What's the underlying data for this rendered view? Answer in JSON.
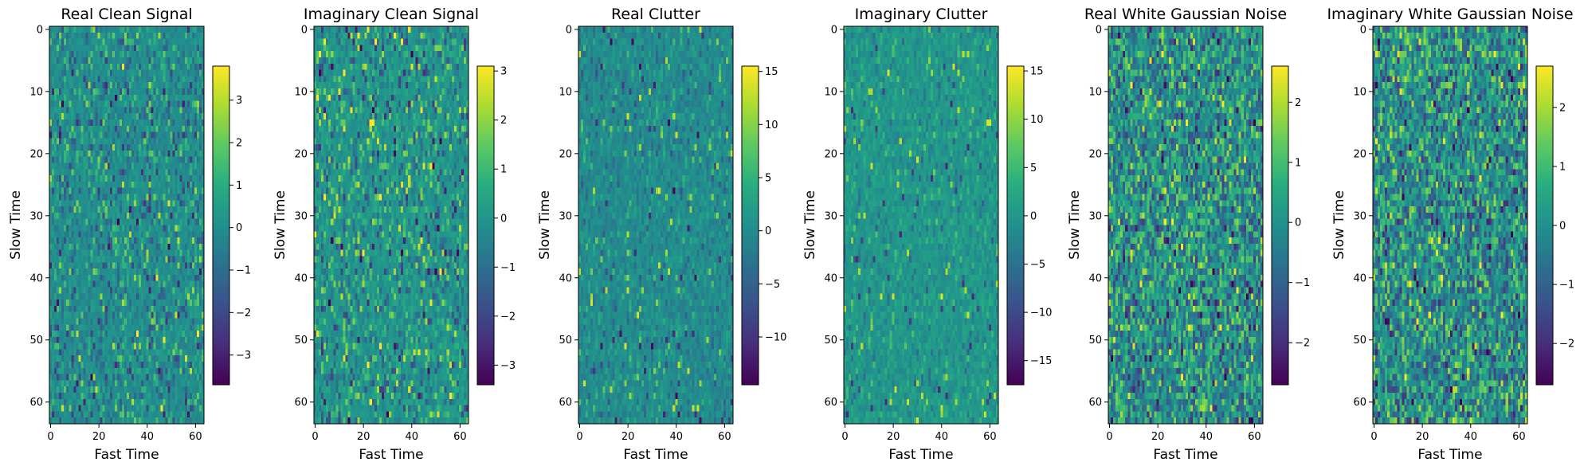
{
  "chart_data": [
    {
      "type": "heatmap",
      "title": "Real Clean Signal",
      "xlabel": "Fast Time",
      "ylabel": "Slow Time",
      "xlim": [
        -0.5,
        63.5
      ],
      "ylim": [
        63.5,
        -0.5
      ],
      "xticks": [
        0,
        20,
        40,
        60
      ],
      "yticks": [
        0,
        10,
        20,
        30,
        40,
        50,
        60
      ],
      "grid_shape": [
        64,
        64
      ],
      "colormap": "viridis",
      "colorbar": {
        "min": -3.7,
        "max": 3.8,
        "ticks": [
          -3,
          -2,
          -1,
          0,
          1,
          2,
          3
        ]
      },
      "pattern": "sparse",
      "seed": 11
    },
    {
      "type": "heatmap",
      "title": "Imaginary Clean Signal",
      "xlabel": "Fast Time",
      "ylabel": "Slow Time",
      "xlim": [
        -0.5,
        63.5
      ],
      "ylim": [
        63.5,
        -0.5
      ],
      "xticks": [
        0,
        20,
        40,
        60
      ],
      "yticks": [
        0,
        10,
        20,
        30,
        40,
        50,
        60
      ],
      "grid_shape": [
        64,
        64
      ],
      "colormap": "viridis",
      "colorbar": {
        "min": -3.4,
        "max": 3.1,
        "ticks": [
          -3,
          -2,
          -1,
          0,
          1,
          2,
          3
        ]
      },
      "pattern": "sparse",
      "seed": 23
    },
    {
      "type": "heatmap",
      "title": "Real Clutter",
      "xlabel": "Fast Time",
      "ylabel": "Slow Time",
      "xlim": [
        -0.5,
        63.5
      ],
      "ylim": [
        63.5,
        -0.5
      ],
      "xticks": [
        0,
        20,
        40,
        60
      ],
      "yticks": [
        0,
        10,
        20,
        30,
        40,
        50,
        60
      ],
      "grid_shape": [
        64,
        64
      ],
      "colormap": "viridis",
      "colorbar": {
        "min": -14.5,
        "max": 15.5,
        "ticks": [
          -10,
          -5,
          0,
          5,
          10,
          15
        ]
      },
      "pattern": "clutter",
      "seed": 37
    },
    {
      "type": "heatmap",
      "title": "Imaginary Clutter",
      "xlabel": "Fast Time",
      "ylabel": "Slow Time",
      "xlim": [
        -0.5,
        63.5
      ],
      "ylim": [
        63.5,
        -0.5
      ],
      "xticks": [
        0,
        20,
        40,
        60
      ],
      "yticks": [
        0,
        10,
        20,
        30,
        40,
        50,
        60
      ],
      "grid_shape": [
        64,
        64
      ],
      "colormap": "viridis",
      "colorbar": {
        "min": -17.5,
        "max": 15.5,
        "ticks": [
          -15,
          -10,
          -5,
          0,
          5,
          10,
          15
        ]
      },
      "pattern": "clutter",
      "seed": 41
    },
    {
      "type": "heatmap",
      "title": "Real White Gaussian Noise",
      "xlabel": "Fast Time",
      "ylabel": "Slow Time",
      "xlim": [
        -0.5,
        63.5
      ],
      "ylim": [
        63.5,
        -0.5
      ],
      "xticks": [
        0,
        20,
        40,
        60
      ],
      "yticks": [
        0,
        10,
        20,
        30,
        40,
        50,
        60
      ],
      "grid_shape": [
        64,
        64
      ],
      "colormap": "viridis",
      "colorbar": {
        "min": -2.7,
        "max": 2.6,
        "ticks": [
          -2,
          -1,
          0,
          1,
          2
        ]
      },
      "pattern": "noise",
      "seed": 53
    },
    {
      "type": "heatmap",
      "title": "Imaginary White Gaussian Noise",
      "xlabel": "Fast Time",
      "ylabel": "Slow Time",
      "xlim": [
        -0.5,
        63.5
      ],
      "ylim": [
        63.5,
        -0.5
      ],
      "xticks": [
        0,
        20,
        40,
        60
      ],
      "yticks": [
        0,
        10,
        20,
        30,
        40,
        50,
        60
      ],
      "grid_shape": [
        64,
        64
      ],
      "colormap": "viridis",
      "colorbar": {
        "min": -2.7,
        "max": 2.7,
        "ticks": [
          -2,
          -1,
          0,
          1,
          2
        ]
      },
      "pattern": "noise",
      "seed": 67
    }
  ]
}
